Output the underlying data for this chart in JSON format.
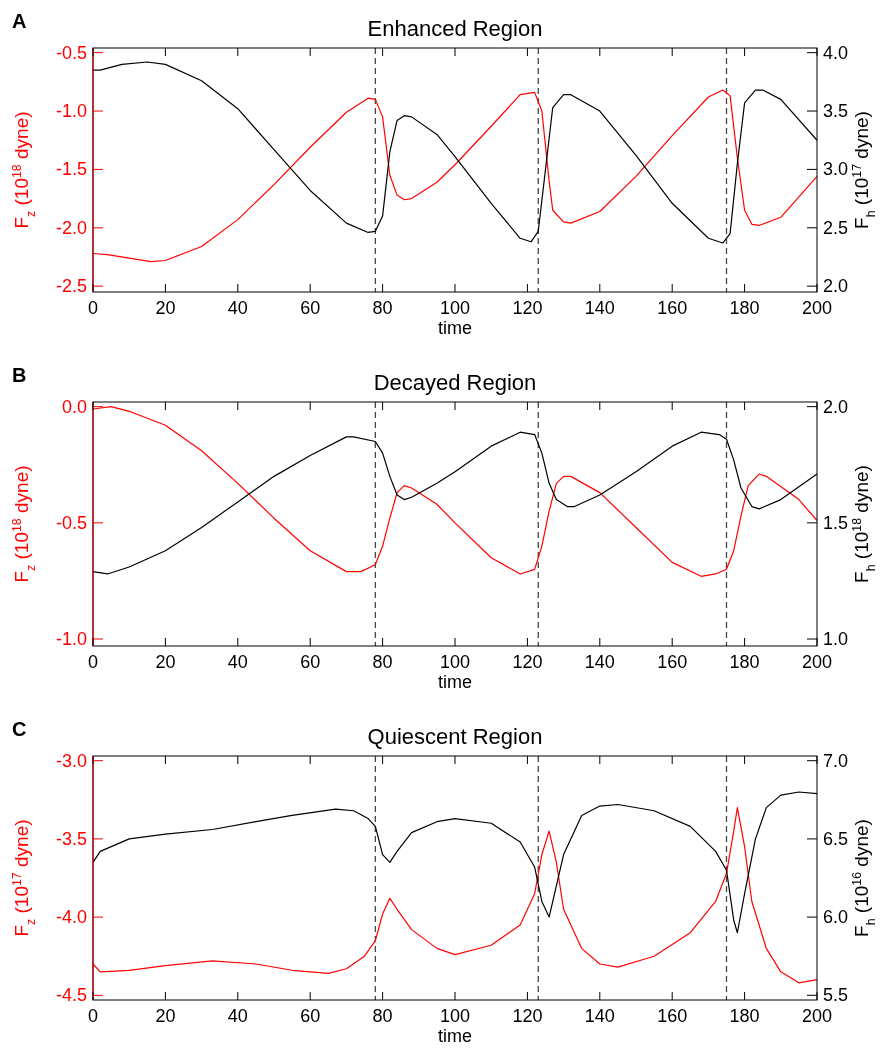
{
  "chart_data": [
    {
      "type": "line",
      "title": "Enhanced  Region",
      "xlabel": "time",
      "ylabel": "F$_{z}$  (10$^{18}$ dyne)",
      "y2label": "F$_{h}$  (10$^{17}$ dyne)",
      "annotations": [
        "A"
      ],
      "xlim": [
        0,
        200
      ],
      "xticks": [
        0,
        20,
        40,
        60,
        80,
        100,
        120,
        140,
        160,
        180,
        200
      ],
      "ylim": [
        -2.55,
        -0.46
      ],
      "yticks": [
        {
          "value": -2.5,
          "label": "-2.5"
        },
        {
          "value": -2.0,
          "label": "-2.0"
        },
        {
          "value": -1.5,
          "label": "-1.5"
        },
        {
          "value": -1.0,
          "label": "-1.0"
        },
        {
          "value": -0.5,
          "label": "-0.5"
        }
      ],
      "y2lim": [
        1.95,
        4.04
      ],
      "y2ticks": [
        {
          "value": 2.0,
          "label": "2.0"
        },
        {
          "value": 2.5,
          "label": "2.5"
        },
        {
          "value": 3.0,
          "label": "3.0"
        },
        {
          "value": 3.5,
          "label": "3.5"
        },
        {
          "value": 4.0,
          "label": "4.0"
        }
      ],
      "grid": false,
      "line_style": "solid",
      "ref_lines": [
        {
          "axis": "x",
          "value": 78,
          "line_style": "dashed",
          "color": "#444444"
        },
        {
          "axis": "x",
          "value": 123,
          "line_style": "dashed",
          "color": "#444444"
        },
        {
          "axis": "x",
          "value": 175,
          "line_style": "dashed",
          "color": "#444444"
        }
      ],
      "series": [
        {
          "color": "#ff0000",
          "x": [
            0,
            4,
            10,
            16,
            20,
            30,
            40,
            50,
            60,
            70,
            76,
            78,
            80,
            82,
            84,
            86,
            88,
            95,
            100,
            110,
            118,
            122,
            124,
            126,
            127,
            130,
            132,
            140,
            150,
            160,
            170,
            174,
            176,
            178,
            180,
            182,
            184,
            190,
            200
          ],
          "values": [
            -2.22,
            -2.23,
            -2.26,
            -2.29,
            -2.28,
            -2.16,
            -1.93,
            -1.63,
            -1.31,
            -1.01,
            -0.89,
            -0.9,
            -1.05,
            -1.55,
            -1.72,
            -1.76,
            -1.75,
            -1.61,
            -1.46,
            -1.13,
            -0.86,
            -0.84,
            -1.0,
            -1.6,
            -1.85,
            -1.95,
            -1.96,
            -1.86,
            -1.56,
            -1.21,
            -0.88,
            -0.82,
            -0.87,
            -1.4,
            -1.85,
            -1.97,
            -1.98,
            -1.91,
            -1.56
          ]
        },
        {
          "color": "#000000",
          "axis": "y2",
          "x": [
            0,
            2,
            8,
            15,
            20,
            30,
            40,
            50,
            60,
            70,
            76,
            78,
            80,
            82,
            84,
            86,
            88,
            95,
            100,
            110,
            118,
            121,
            123,
            125,
            127,
            130,
            132,
            140,
            150,
            160,
            170,
            174,
            176,
            178,
            180,
            183,
            185,
            190,
            200
          ],
          "values": [
            3.85,
            3.85,
            3.9,
            3.92,
            3.9,
            3.76,
            3.52,
            3.17,
            2.82,
            2.54,
            2.46,
            2.47,
            2.6,
            3.15,
            3.42,
            3.46,
            3.45,
            3.3,
            3.11,
            2.71,
            2.41,
            2.38,
            2.47,
            3.0,
            3.53,
            3.64,
            3.64,
            3.5,
            3.12,
            2.71,
            2.41,
            2.37,
            2.45,
            3.05,
            3.57,
            3.68,
            3.68,
            3.6,
            3.25
          ]
        }
      ]
    },
    {
      "type": "line",
      "title": "Decayed  Region",
      "xlabel": "time",
      "ylabel": "F$_{z}$  (10$^{18}$ dyne)",
      "y2label": "F$_{h}$  (10$^{18}$ dyne)",
      "annotations": [
        "B"
      ],
      "xlim": [
        0,
        200
      ],
      "xticks": [
        0,
        20,
        40,
        60,
        80,
        100,
        120,
        140,
        160,
        180,
        200
      ],
      "ylim": [
        -1.03,
        0.02
      ],
      "yticks": [
        {
          "value": -1.0,
          "label": "-1.0"
        },
        {
          "value": -0.5,
          "label": "-0.5"
        },
        {
          "value": 0.0,
          "label": "0.0"
        }
      ],
      "y2lim": [
        0.97,
        2.02
      ],
      "y2ticks": [
        {
          "value": 1.0,
          "label": "1.0"
        },
        {
          "value": 1.5,
          "label": "1.5"
        },
        {
          "value": 2.0,
          "label": "2.0"
        }
      ],
      "grid": false,
      "line_style": "solid",
      "ref_lines": [
        {
          "axis": "x",
          "value": 78,
          "line_style": "dashed",
          "color": "#444444"
        },
        {
          "axis": "x",
          "value": 123,
          "line_style": "dashed",
          "color": "#444444"
        },
        {
          "axis": "x",
          "value": 175,
          "line_style": "dashed",
          "color": "#444444"
        }
      ],
      "series": [
        {
          "color": "#ff0000",
          "x": [
            0,
            5,
            10,
            20,
            30,
            40,
            50,
            60,
            70,
            74,
            78,
            80,
            82,
            84,
            86,
            88,
            95,
            100,
            110,
            118,
            122,
            124,
            126,
            128,
            130,
            132,
            140,
            150,
            160,
            168,
            172,
            175,
            177,
            179,
            181,
            184,
            186,
            195,
            200
          ],
          "values": [
            -0.01,
            0.0,
            -0.02,
            -0.08,
            -0.19,
            -0.33,
            -0.48,
            -0.62,
            -0.71,
            -0.71,
            -0.68,
            -0.6,
            -0.48,
            -0.37,
            -0.34,
            -0.35,
            -0.42,
            -0.5,
            -0.65,
            -0.72,
            -0.7,
            -0.6,
            -0.45,
            -0.33,
            -0.3,
            -0.3,
            -0.37,
            -0.52,
            -0.67,
            -0.73,
            -0.72,
            -0.7,
            -0.62,
            -0.47,
            -0.34,
            -0.29,
            -0.3,
            -0.4,
            -0.49
          ]
        },
        {
          "color": "#000000",
          "axis": "y2",
          "x": [
            0,
            4,
            10,
            20,
            30,
            40,
            50,
            60,
            70,
            72,
            78,
            80,
            82,
            84,
            86,
            88,
            95,
            100,
            110,
            118,
            122,
            124,
            126,
            128,
            131,
            133,
            140,
            150,
            160,
            168,
            173,
            175,
            177,
            179,
            182,
            184,
            190,
            200
          ],
          "values": [
            1.29,
            1.28,
            1.31,
            1.38,
            1.48,
            1.59,
            1.7,
            1.79,
            1.87,
            1.87,
            1.85,
            1.8,
            1.7,
            1.62,
            1.6,
            1.61,
            1.67,
            1.72,
            1.83,
            1.89,
            1.88,
            1.8,
            1.67,
            1.6,
            1.57,
            1.57,
            1.62,
            1.72,
            1.83,
            1.89,
            1.88,
            1.86,
            1.77,
            1.65,
            1.57,
            1.56,
            1.6,
            1.71
          ]
        }
      ]
    },
    {
      "type": "line",
      "title": "Quiescent  Region",
      "xlabel": "time",
      "ylabel": "F$_{z}$  (10$^{17}$ dyne)",
      "y2label": "F$_{h}$  (10$^{16}$ dyne)",
      "annotations": [
        "C"
      ],
      "xlim": [
        0,
        200
      ],
      "xticks": [
        0,
        20,
        40,
        60,
        80,
        100,
        120,
        140,
        160,
        180,
        200
      ],
      "ylim": [
        -4.53,
        -2.97
      ],
      "yticks": [
        {
          "value": -4.5,
          "label": "-4.5"
        },
        {
          "value": -4.0,
          "label": "-4.0"
        },
        {
          "value": -3.5,
          "label": "-3.5"
        },
        {
          "value": -3.0,
          "label": "-3.0"
        }
      ],
      "y2lim": [
        5.47,
        7.03
      ],
      "y2ticks": [
        {
          "value": 5.5,
          "label": "5.5"
        },
        {
          "value": 6.0,
          "label": "6.0"
        },
        {
          "value": 6.5,
          "label": "6.5"
        },
        {
          "value": 7.0,
          "label": "7.0"
        }
      ],
      "grid": false,
      "line_style": "solid",
      "ref_lines": [
        {
          "axis": "x",
          "value": 78,
          "line_style": "dashed",
          "color": "#444444"
        },
        {
          "axis": "x",
          "value": 123,
          "line_style": "dashed",
          "color": "#444444"
        },
        {
          "axis": "x",
          "value": 175,
          "line_style": "dashed",
          "color": "#444444"
        }
      ],
      "series": [
        {
          "color": "#ff0000",
          "x": [
            0,
            2,
            10,
            20,
            33,
            45,
            55,
            65,
            70,
            75,
            78,
            80,
            82,
            84,
            88,
            95,
            100,
            110,
            118,
            122,
            124,
            126,
            128,
            130,
            135,
            140,
            145,
            155,
            165,
            172,
            175,
            177,
            178,
            180,
            182,
            186,
            190,
            195,
            200
          ],
          "values": [
            -4.3,
            -4.35,
            -4.34,
            -4.31,
            -4.28,
            -4.3,
            -4.34,
            -4.36,
            -4.33,
            -4.25,
            -4.15,
            -3.98,
            -3.88,
            -3.95,
            -4.08,
            -4.2,
            -4.24,
            -4.18,
            -4.05,
            -3.85,
            -3.6,
            -3.45,
            -3.65,
            -3.95,
            -4.2,
            -4.3,
            -4.32,
            -4.25,
            -4.1,
            -3.9,
            -3.72,
            -3.45,
            -3.3,
            -3.55,
            -3.9,
            -4.2,
            -4.35,
            -4.42,
            -4.4
          ]
        },
        {
          "color": "#000000",
          "axis": "y2",
          "x": [
            0,
            2,
            10,
            20,
            33,
            45,
            55,
            67,
            72,
            76,
            78,
            80,
            82,
            84,
            88,
            95,
            100,
            110,
            118,
            122,
            124,
            126,
            128,
            130,
            135,
            140,
            145,
            155,
            165,
            172,
            175,
            177,
            178,
            180,
            183,
            186,
            190,
            195,
            200
          ],
          "values": [
            6.35,
            6.42,
            6.5,
            6.53,
            6.56,
            6.61,
            6.65,
            6.69,
            6.68,
            6.63,
            6.58,
            6.4,
            6.35,
            6.42,
            6.54,
            6.61,
            6.63,
            6.6,
            6.48,
            6.32,
            6.1,
            6.0,
            6.2,
            6.4,
            6.65,
            6.71,
            6.72,
            6.68,
            6.58,
            6.42,
            6.3,
            5.98,
            5.9,
            6.15,
            6.5,
            6.7,
            6.78,
            6.8,
            6.79
          ]
        }
      ]
    }
  ]
}
